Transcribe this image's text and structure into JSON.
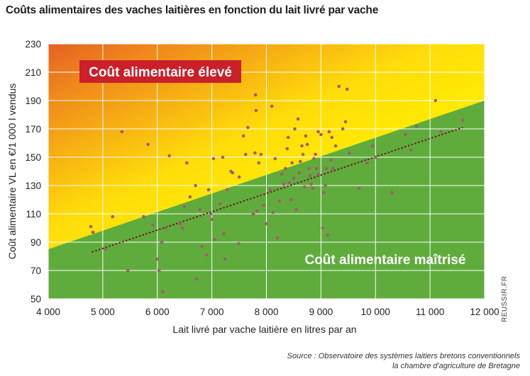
{
  "chart_data": {
    "type": "scatter",
    "title": "Coûts alimentaires des vaches laitières en fonction du lait livré par vache",
    "xlabel": "Lait livré par vache laitière en litres par an",
    "ylabel": "Coût alimentaire VL en €/1 000 l vendus",
    "xlim": [
      4000,
      12000
    ],
    "ylim": [
      50,
      230
    ],
    "xticks": [
      4000,
      5000,
      6000,
      7000,
      8000,
      9000,
      10000,
      11000,
      12000
    ],
    "xtick_labels": [
      "4 000",
      "5 000",
      "6 000",
      "7 000",
      "8 000",
      "9 000",
      "10 000",
      "11 000",
      "12 000"
    ],
    "yticks": [
      50,
      70,
      90,
      110,
      130,
      150,
      170,
      190,
      210,
      230
    ],
    "grid": true,
    "zones": {
      "high": "Coût alimentaire élevé",
      "controlled": "Coût alimentaire maîtrisé"
    },
    "trend_line": {
      "x": [
        4800,
        11600
      ],
      "y": [
        83,
        171
      ]
    },
    "points": [
      [
        4780,
        101
      ],
      [
        4820,
        97
      ],
      [
        5050,
        85
      ],
      [
        5180,
        108
      ],
      [
        5350,
        168
      ],
      [
        5460,
        70
      ],
      [
        5750,
        108
      ],
      [
        5830,
        159
      ],
      [
        5920,
        102
      ],
      [
        6000,
        78
      ],
      [
        6030,
        70
      ],
      [
        6080,
        90
      ],
      [
        6100,
        55
      ],
      [
        6150,
        100
      ],
      [
        6220,
        151
      ],
      [
        6420,
        103
      ],
      [
        6460,
        100
      ],
      [
        6500,
        115
      ],
      [
        6540,
        146
      ],
      [
        6600,
        122
      ],
      [
        6700,
        130
      ],
      [
        6720,
        64
      ],
      [
        6780,
        113
      ],
      [
        6820,
        87
      ],
      [
        6900,
        81
      ],
      [
        6940,
        127
      ],
      [
        6980,
        110
      ],
      [
        7000,
        106
      ],
      [
        7030,
        149
      ],
      [
        7050,
        92
      ],
      [
        7150,
        117
      ],
      [
        7200,
        150
      ],
      [
        7220,
        96
      ],
      [
        7240,
        78
      ],
      [
        7280,
        127
      ],
      [
        7350,
        140
      ],
      [
        7380,
        139
      ],
      [
        7490,
        89
      ],
      [
        7580,
        165
      ],
      [
        7620,
        152
      ],
      [
        7660,
        171
      ],
      [
        7760,
        110
      ],
      [
        7790,
        153
      ],
      [
        7800,
        194
      ],
      [
        7810,
        183
      ],
      [
        7830,
        112
      ],
      [
        7860,
        146
      ],
      [
        7900,
        152
      ],
      [
        7950,
        116
      ],
      [
        8000,
        103
      ],
      [
        8070,
        127
      ],
      [
        8100,
        186
      ],
      [
        8120,
        111
      ],
      [
        8160,
        149
      ],
      [
        8200,
        93
      ],
      [
        8240,
        119
      ],
      [
        8280,
        138
      ],
      [
        8320,
        131
      ],
      [
        8350,
        142
      ],
      [
        8380,
        156
      ],
      [
        8400,
        164
      ],
      [
        8420,
        132
      ],
      [
        8450,
        120
      ],
      [
        8470,
        146
      ],
      [
        8500,
        135
      ],
      [
        8520,
        170
      ],
      [
        8550,
        113
      ],
      [
        8580,
        177
      ],
      [
        8600,
        139
      ],
      [
        8620,
        147
      ],
      [
        8650,
        158
      ],
      [
        8670,
        152
      ],
      [
        8700,
        129
      ],
      [
        8720,
        165
      ],
      [
        8750,
        159
      ],
      [
        8780,
        142
      ],
      [
        8800,
        137
      ],
      [
        8820,
        131
      ],
      [
        8850,
        128
      ],
      [
        8870,
        149
      ],
      [
        8900,
        152
      ],
      [
        8920,
        142
      ],
      [
        8950,
        138
      ],
      [
        9000,
        166
      ],
      [
        9030,
        100
      ],
      [
        9050,
        125
      ],
      [
        9080,
        130
      ],
      [
        9100,
        142
      ],
      [
        9120,
        95
      ],
      [
        9150,
        168
      ],
      [
        9200,
        164
      ],
      [
        9220,
        142
      ],
      [
        9270,
        158
      ],
      [
        9330,
        200
      ],
      [
        9400,
        170
      ],
      [
        9450,
        175
      ],
      [
        9480,
        198
      ],
      [
        9520,
        153
      ],
      [
        9700,
        128
      ],
      [
        9850,
        146
      ],
      [
        9950,
        158
      ],
      [
        10000,
        150
      ],
      [
        10300,
        125
      ],
      [
        10550,
        166
      ],
      [
        10650,
        155
      ],
      [
        10750,
        172
      ],
      [
        11100,
        190
      ],
      [
        11200,
        168
      ],
      [
        11600,
        176
      ],
      [
        9180,
        148
      ],
      [
        8950,
        168
      ],
      [
        7500,
        136
      ]
    ]
  },
  "source": {
    "line1": "Source : Observatoire des systèmes laitiers bretons conventionnels",
    "line2": "la chambre d'agriculture de Bretagne"
  },
  "watermark": "REUSSIR.FR",
  "colors": {
    "red": "#d4262a",
    "orange": "#f28a1a",
    "yellow": "#ffe10a",
    "green": "#5fac3c",
    "dot": "#a45a72",
    "trend": "#6b1a2a",
    "zone_label_bg": "#c9202a"
  }
}
